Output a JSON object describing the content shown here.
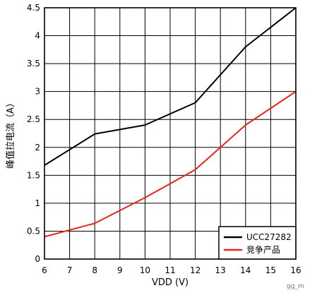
{
  "chart_data": {
    "type": "line",
    "xlabel": "VDD (V)",
    "ylabel": "峰值拉电流（A）",
    "x_ticks": [
      6,
      7,
      8,
      9,
      10,
      11,
      12,
      13,
      14,
      15,
      16
    ],
    "y_ticks": [
      0,
      0.5,
      1,
      1.5,
      2,
      2.5,
      3,
      3.5,
      4,
      4.5
    ],
    "xlim": [
      6,
      16
    ],
    "ylim": [
      0,
      4.5
    ],
    "grid": true,
    "legend_position": "bottom-right",
    "series": [
      {
        "name": "UCC27282",
        "color": "#000000",
        "points": [
          [
            6,
            1.68
          ],
          [
            8,
            2.24
          ],
          [
            10,
            2.4
          ],
          [
            12,
            2.8
          ],
          [
            14,
            3.8
          ],
          [
            16,
            4.5
          ]
        ]
      },
      {
        "name": "竞争产品",
        "color": "#e8251b",
        "points": [
          [
            6,
            0.4
          ],
          [
            8,
            0.64
          ],
          [
            10,
            1.1
          ],
          [
            12,
            1.6
          ],
          [
            14,
            2.4
          ],
          [
            16,
            3.0
          ]
        ]
      }
    ]
  },
  "footnote": "gg_m"
}
